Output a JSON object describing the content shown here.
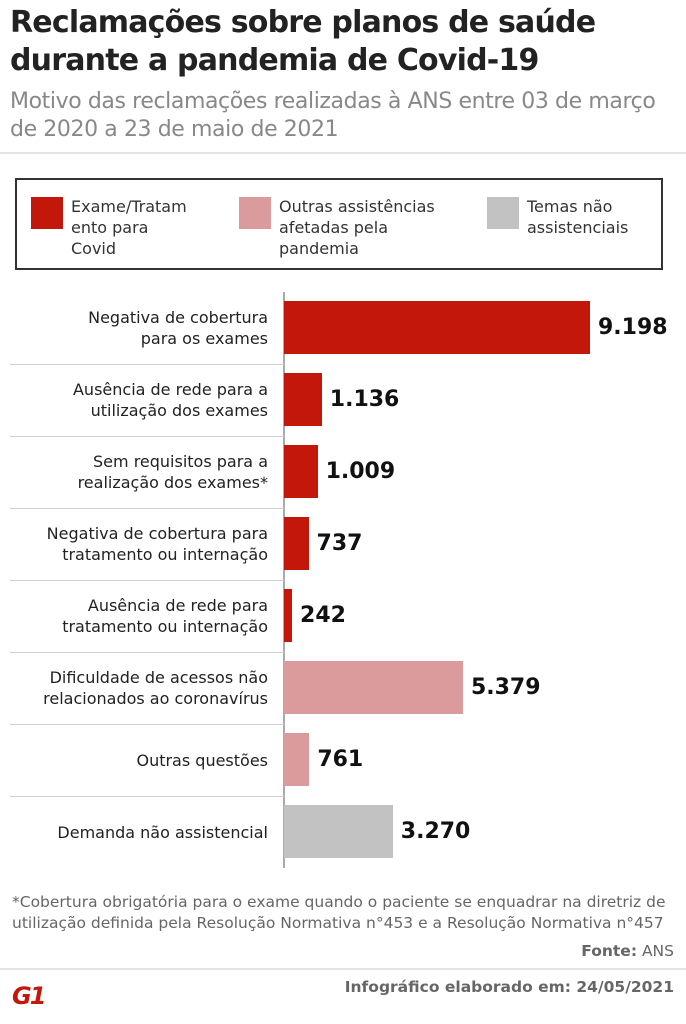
{
  "chart_data": {
    "type": "bar",
    "orientation": "horizontal",
    "title": "Reclamações sobre planos de saúde durante a pandemia de Covid-19",
    "subtitle": "Motivo das reclamações realizadas à ANS entre 03 de março de 2020 a 23 de maio de 2021",
    "legend": [
      {
        "label": "Exame/Tratamento para Covid",
        "label_lines": [
          "Exame/Tratam",
          "ento para",
          "Covid"
        ],
        "color": "#c4170c"
      },
      {
        "label": "Outras assistências afetadas pela pandemia",
        "label_lines": [
          "Outras assistências",
          "afetadas pela",
          "pandemia"
        ],
        "color": "#db9a9b"
      },
      {
        "label": "Temas não assistenciais",
        "label_lines": [
          "Temas não",
          "assistenciais"
        ],
        "color": "#c2c2c2"
      }
    ],
    "categories": [
      {
        "lines": [
          "Negativa de cobertura",
          "para os exames"
        ],
        "value": 9198,
        "label": "9.198",
        "group": 0
      },
      {
        "lines": [
          "Ausência de rede para a",
          "utilização dos exames"
        ],
        "value": 1136,
        "label": "1.136",
        "group": 0
      },
      {
        "lines": [
          "Sem requisitos para a",
          "realização dos exames*"
        ],
        "value": 1009,
        "label": "1.009",
        "group": 0
      },
      {
        "lines": [
          "Negativa de cobertura para",
          "tratamento ou internação"
        ],
        "value": 737,
        "label": "737",
        "group": 0
      },
      {
        "lines": [
          "Ausência de rede para",
          "tratamento ou internação"
        ],
        "value": 242,
        "label": "242",
        "group": 0
      },
      {
        "lines": [
          "Dificuldade de acessos não",
          "relacionados ao coronavírus"
        ],
        "value": 5379,
        "label": "5.379",
        "group": 1
      },
      {
        "lines": [
          "Outras questões"
        ],
        "value": 761,
        "label": "761",
        "group": 1
      },
      {
        "lines": [
          "Demanda não assistencial"
        ],
        "value": 3270,
        "label": "3.270",
        "group": 2
      }
    ],
    "xlim": [
      0,
      9198
    ],
    "grid": false
  },
  "footer": {
    "note_line1": "*Cobertura obrigatória para o exame quando o paciente se enquadrar na diretriz de",
    "note_line2": "utilização definida pela Resolução Normativa n°453 e a Resolução Normativa n°457",
    "source_label": "Fonte:",
    "source": "ANS",
    "made": "Infográfico elaborado em: 24/05/2021",
    "logo": "G1"
  }
}
